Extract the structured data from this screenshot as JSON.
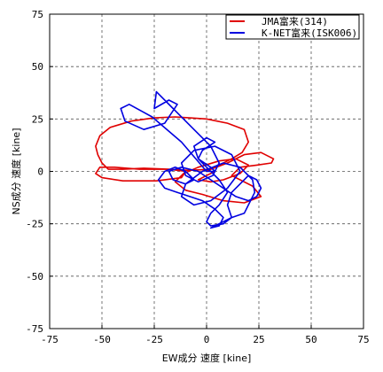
{
  "chart_data": {
    "type": "line",
    "xlabel": "EW成分 速度 [kine]",
    "ylabel": "NS成分 速度 [kine]",
    "xlim": [
      -75,
      75
    ],
    "ylim": [
      -75,
      75
    ],
    "xticks": [
      "-75",
      "-50",
      "-25",
      "0",
      "25",
      "50",
      "75"
    ],
    "yticks": [
      "-75",
      "-50",
      "-25",
      "0",
      "25",
      "50",
      "75"
    ],
    "grid": true,
    "legend_position": "top-right",
    "series": [
      {
        "name": "JMA富来(314)",
        "color": "#e00000",
        "x": [
          0,
          6,
          12,
          17,
          20,
          18,
          10,
          0,
          -8,
          -15,
          -25,
          -36,
          -46,
          -51,
          -53,
          -52,
          -50,
          -47,
          -40,
          -30,
          -18,
          -10,
          -12,
          -24,
          -40,
          -50,
          -53,
          -51,
          -44,
          -32,
          -20,
          -8,
          2,
          10,
          18,
          26,
          32,
          31,
          24,
          16,
          12,
          22,
          26,
          18,
          8,
          -2,
          -10,
          -15,
          -11,
          -4,
          6,
          14,
          20,
          16,
          8,
          2,
          -4,
          0,
          4
        ],
        "y": [
          0,
          3,
          6,
          9,
          14,
          20,
          23,
          25,
          25.5,
          26,
          25.5,
          24,
          21,
          17,
          12,
          8,
          4,
          1,
          1,
          1.5,
          1,
          0,
          -3,
          -4.5,
          -4.5,
          -3,
          -1,
          2,
          2,
          1,
          1,
          0.5,
          1,
          4,
          8,
          9,
          6,
          4,
          3,
          2,
          -2,
          -7,
          -12,
          -15,
          -14,
          -11,
          -9,
          -5,
          -1,
          2,
          5,
          6,
          3,
          -1,
          -4,
          -5,
          -4,
          -2,
          0
        ]
      },
      {
        "name": "K-NET富来(ISK006)",
        "color": "#0000e0",
        "x": [
          0,
          -12,
          -26,
          -37,
          -41,
          -39,
          -30,
          -20,
          -14,
          -18,
          -25,
          -24,
          -16,
          -6,
          2,
          6,
          3,
          -4,
          -10,
          -12,
          -6,
          4,
          12,
          16,
          10,
          2,
          -6,
          -12,
          -10,
          -2,
          8,
          16,
          22,
          23,
          20,
          18,
          12,
          8,
          4,
          2,
          6,
          8,
          4,
          -2,
          -8,
          -14,
          -20,
          -23,
          -20,
          -15,
          -10,
          -6,
          -10,
          -16,
          -18,
          -12,
          -4,
          2,
          8,
          14,
          20,
          24,
          26,
          24,
          20,
          16,
          12,
          10,
          12,
          8,
          2,
          0,
          2,
          6,
          10,
          6,
          0,
          -4,
          -2,
          4,
          0,
          -6,
          -4,
          2,
          4,
          0
        ],
        "y": [
          0,
          14,
          26,
          32,
          30,
          24,
          20,
          23,
          32,
          34,
          30,
          38,
          30,
          20,
          12,
          4,
          -2,
          -5,
          -2,
          4,
          10,
          12,
          8,
          0,
          -8,
          -14,
          -16,
          -12,
          -6,
          0,
          4,
          2,
          -4,
          -10,
          -16,
          -20,
          -22,
          -24,
          -26,
          -27,
          -26,
          -22,
          -18,
          -14,
          -12,
          -10,
          -8,
          -4,
          0,
          2,
          0,
          -4,
          -6,
          -4,
          0,
          2,
          0,
          -4,
          -8,
          -12,
          -14,
          -12,
          -8,
          -4,
          -2,
          -6,
          -10,
          -16,
          -22,
          -25,
          -26,
          -24,
          -20,
          -16,
          -10,
          -4,
          2,
          6,
          10,
          14,
          16,
          12,
          6,
          2,
          0,
          0
        ]
      }
    ]
  }
}
